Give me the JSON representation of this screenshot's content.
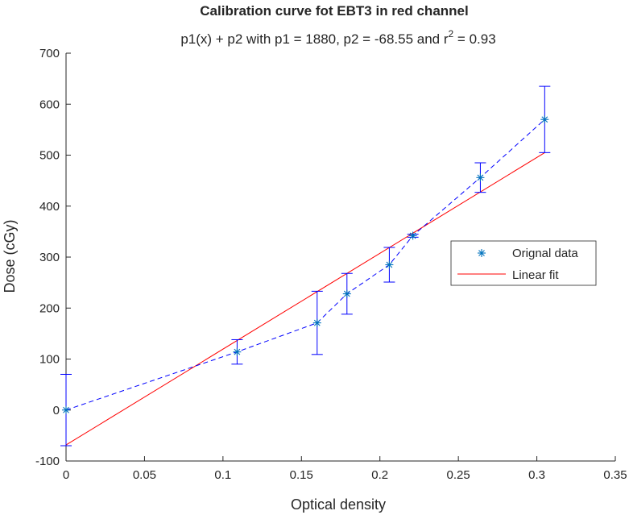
{
  "chart_data": {
    "type": "scatter",
    "title": "Calibration curve fot EBT3 in red channel",
    "subtitle": {
      "prefix": "p1(x) + p2 with p1 = 1880, p2 = -68.55 and r",
      "superscript": "2",
      "suffix": " = 0.93"
    },
    "xlabel": "Optical density",
    "ylabel": "Dose (cGy)",
    "xlim": [
      0,
      0.35
    ],
    "ylim": [
      -100,
      700
    ],
    "x_ticks": [
      "0",
      "0.05",
      "0.1",
      "0.15",
      "0.2",
      "0.25",
      "0.3",
      "0.35"
    ],
    "y_ticks": [
      "-100",
      "0",
      "100",
      "200",
      "300",
      "400",
      "500",
      "600",
      "700"
    ],
    "grid": false,
    "legend_position": "right",
    "series": [
      {
        "name": "Orignal data",
        "style": "asterisk markers, dashed line with error bars",
        "color": "#0000ff",
        "marker_color": "#0072bd",
        "x": [
          0,
          0.109,
          0.16,
          0.179,
          0.206,
          0.221,
          0.264,
          0.305
        ],
        "y": [
          0,
          114,
          171,
          228,
          285,
          342,
          456,
          570
        ],
        "error": [
          70,
          24,
          62,
          40,
          34,
          3,
          29,
          65
        ]
      },
      {
        "name": "Linear fit",
        "style": "solid line",
        "color": "#ff0000",
        "x": [
          0,
          0.305
        ],
        "y": [
          -68.55,
          504.85
        ]
      }
    ]
  }
}
